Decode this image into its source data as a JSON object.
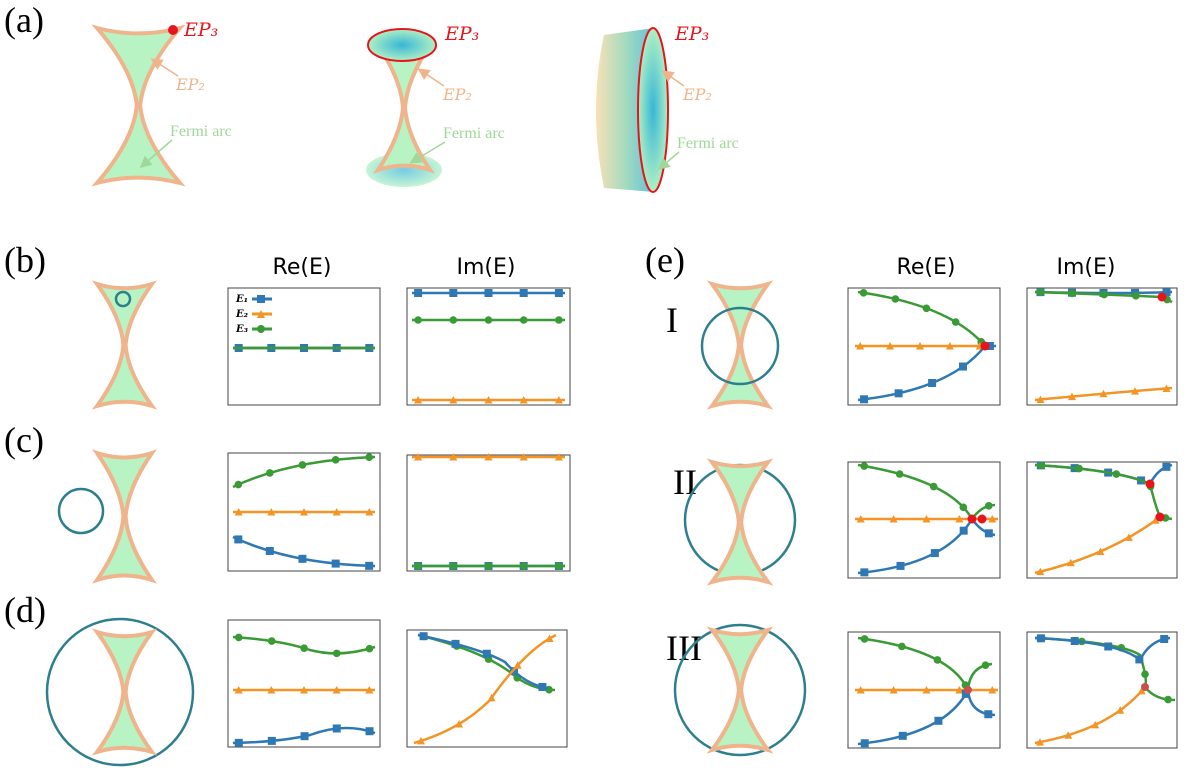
{
  "panel_a": {
    "label": "(a)",
    "ep3": "EP₃",
    "ep2": "EP₂",
    "fermi_arc": "Fermi arc"
  },
  "panel_b": {
    "label": "(b)",
    "legend": [
      "E₁",
      "E₂",
      "E₃"
    ]
  },
  "panel_c": {
    "label": "(c)"
  },
  "panel_d": {
    "label": "(d)"
  },
  "panel_e": {
    "label": "(e)",
    "rows": [
      "I",
      "II",
      "III"
    ]
  },
  "column_headers": [
    "Re(E)",
    "Im(E)"
  ]
}
